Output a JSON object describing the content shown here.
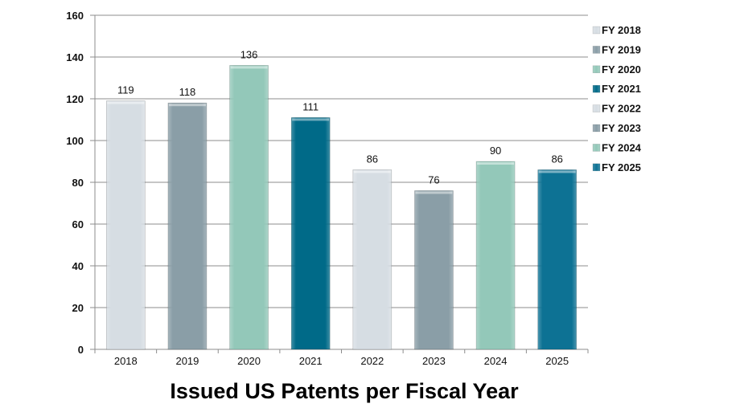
{
  "chart_data": {
    "type": "bar",
    "title": "Issued US Patents per Fiscal Year",
    "xlabel": "",
    "ylabel": "",
    "categories": [
      "2018",
      "2019",
      "2020",
      "2021",
      "2022",
      "2023",
      "2024",
      "2025"
    ],
    "values": [
      119,
      118,
      136,
      111,
      86,
      76,
      90,
      86
    ],
    "ylim": [
      0,
      160
    ],
    "yticks": [
      0,
      20,
      40,
      60,
      80,
      100,
      120,
      140,
      160
    ],
    "grid": true,
    "legend_position": "right",
    "legend": [
      "FY 2018",
      "FY 2019",
      "FY 2020",
      "FY 2021",
      "FY 2022",
      "FY 2023",
      "FY 2024",
      "FY 2025"
    ],
    "colors": [
      "#d6dde3",
      "#8a9ea7",
      "#93c8b9",
      "#006a88",
      "#d6dde3",
      "#8a9ea7",
      "#93c8b9",
      "#0d7294"
    ]
  }
}
